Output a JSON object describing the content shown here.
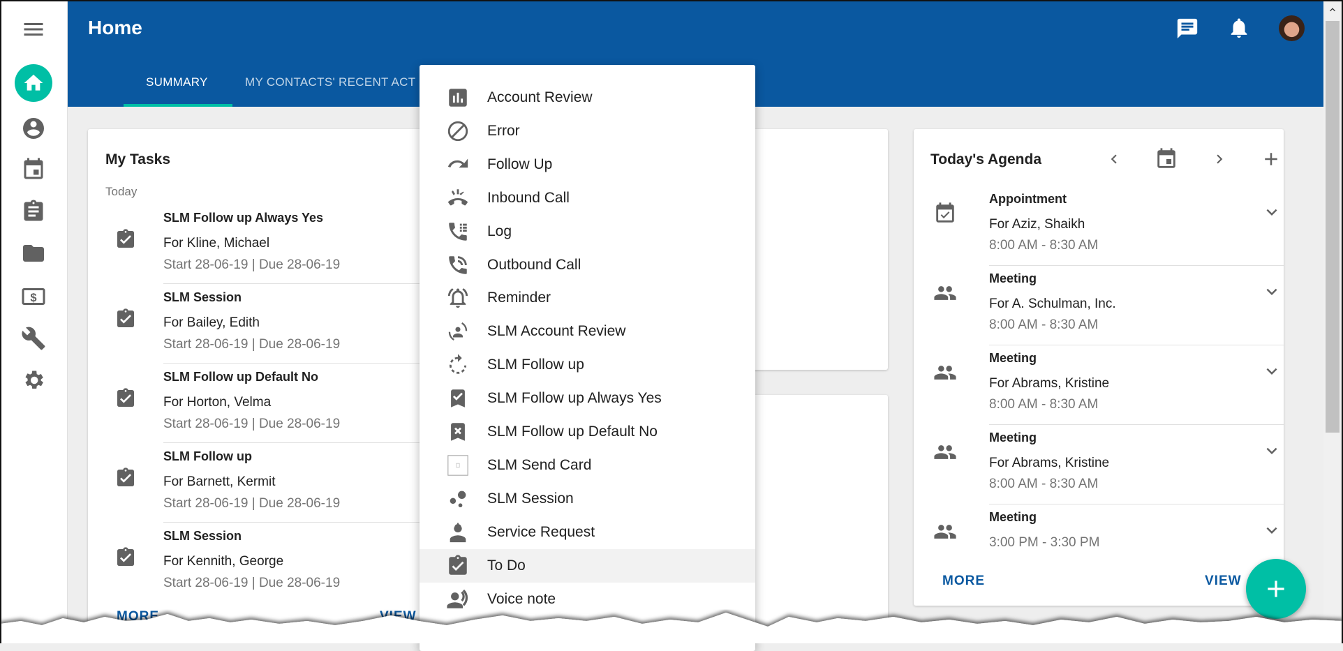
{
  "header": {
    "title": "Home",
    "tabs": [
      {
        "label": "SUMMARY",
        "active": true
      },
      {
        "label": "MY CONTACTS' RECENT ACT"
      }
    ],
    "accent": "#0a58a0",
    "tab_indicator": "#00bfa5"
  },
  "header_icons": [
    "chat-icon",
    "bell-icon",
    "avatar"
  ],
  "sidebar": {
    "items": [
      "menu-icon",
      "home-icon",
      "contact-icon",
      "calendar-icon",
      "clipboard-icon",
      "folder-icon",
      "billing-icon",
      "wrench-icon",
      "gear-icon"
    ],
    "active": "home-icon",
    "active_color": "#00bfa5"
  },
  "tasks": {
    "title": "My Tasks",
    "group": "Today",
    "items": [
      {
        "title": "SLM Follow up Always Yes",
        "for": "For Kline, Michael",
        "dates": "Start 28-06-19 | Due 28-06-19"
      },
      {
        "title": "SLM Session",
        "for": "For Bailey, Edith",
        "dates": "Start 28-06-19 | Due 28-06-19"
      },
      {
        "title": "SLM Follow up Default No",
        "for": "For Horton, Velma",
        "dates": "Start 28-06-19 | Due 28-06-19"
      },
      {
        "title": "SLM Follow up",
        "for": "For Barnett, Kermit",
        "dates": "Start 28-06-19 | Due 28-06-19"
      },
      {
        "title": "SLM Session",
        "for": "For Kennith, George",
        "dates": "Start 28-06-19 | Due 28-06-19"
      }
    ],
    "more": "MORE",
    "view": "VIEW"
  },
  "agenda": {
    "title": "Today's Agenda",
    "items": [
      {
        "icon": "calendar-check-icon",
        "title": "Appointment",
        "for": "For Aziz, Shaikh",
        "time": "8:00 AM - 8:30 AM"
      },
      {
        "icon": "people-icon",
        "title": "Meeting",
        "for": "For A. Schulman, Inc.",
        "time": "8:00 AM - 8:30 AM"
      },
      {
        "icon": "people-icon",
        "title": "Meeting",
        "for": "For Abrams, Kristine",
        "time": "8:00 AM - 8:30 AM"
      },
      {
        "icon": "people-icon",
        "title": "Meeting",
        "for": "For Abrams, Kristine",
        "time": "8:00 AM - 8:30 AM"
      },
      {
        "icon": "people-icon",
        "title": "Meeting",
        "for": "",
        "time": "3:00 PM - 3:30 PM"
      }
    ],
    "more": "MORE",
    "view": "VIEW"
  },
  "menu": {
    "highlighted": "To Do",
    "items": [
      {
        "label": "Account Review",
        "icon": "chart-icon"
      },
      {
        "label": "Error",
        "icon": "block-icon"
      },
      {
        "label": "Follow Up",
        "icon": "redo-icon"
      },
      {
        "label": "Inbound Call",
        "icon": "ringing-phone-icon"
      },
      {
        "label": "Log",
        "icon": "phone-log-icon"
      },
      {
        "label": "Outbound Call",
        "icon": "phone-wave-icon"
      },
      {
        "label": "Reminder",
        "icon": "alarm-icon"
      },
      {
        "label": "SLM Account Review",
        "icon": "person-cycle-icon"
      },
      {
        "label": "SLM Follow up",
        "icon": "refresh-dashed-icon"
      },
      {
        "label": "SLM Follow up Always Yes",
        "icon": "bookmark-check-icon"
      },
      {
        "label": "SLM Follow up Default No",
        "icon": "bookmark-x-icon"
      },
      {
        "label": "SLM Send Card",
        "icon": "broken-image-icon"
      },
      {
        "label": "SLM Session",
        "icon": "bubbles-icon"
      },
      {
        "label": "Service Request",
        "icon": "worker-icon"
      },
      {
        "label": "To Do",
        "icon": "clipboard-check-icon"
      },
      {
        "label": "Voice note",
        "icon": "voice-icon"
      }
    ]
  },
  "fab": {
    "icon": "plus-icon",
    "color": "#00bfa5"
  }
}
